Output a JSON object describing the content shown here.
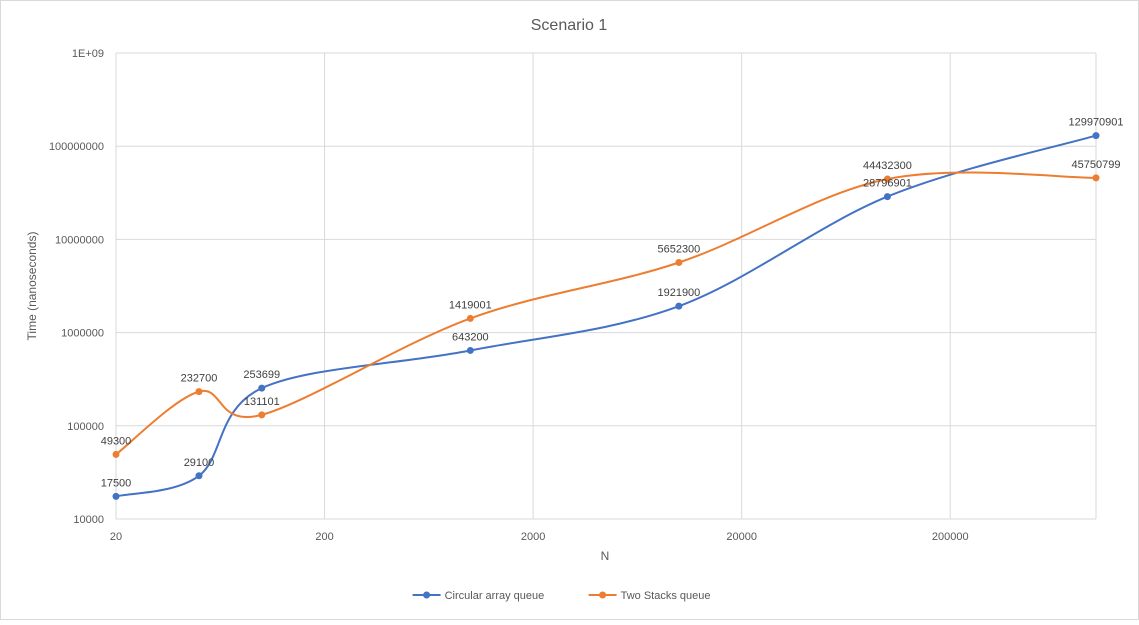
{
  "chart_data": {
    "type": "line",
    "title": "Scenario 1",
    "xlabel": "N",
    "ylabel": "Time (nanoseconds)",
    "x_scale": "log",
    "y_scale": "log",
    "xlim": [
      20,
      1000000
    ],
    "ylim": [
      10000,
      1000000000
    ],
    "x_ticks": [
      "20",
      "200",
      "2000",
      "20000",
      "200000"
    ],
    "y_ticks": [
      "10000",
      "100000",
      "1000000",
      "10000000",
      "100000000",
      "1E+09"
    ],
    "grid": true,
    "legend_position": "bottom",
    "series": [
      {
        "name": "Circular array queue",
        "color": "#4472C4",
        "x": [
          20,
          50,
          100,
          1000,
          10000,
          100000,
          1000000
        ],
        "values": [
          17500,
          29100,
          253699,
          643200,
          1921900,
          28796901,
          129970901
        ],
        "labels": [
          "17500",
          "29100",
          "253699",
          "643200",
          "1921900",
          "28796901",
          "129970901"
        ]
      },
      {
        "name": "Two Stacks queue",
        "color": "#ED7D31",
        "x": [
          20,
          50,
          100,
          1000,
          10000,
          100000,
          1000000
        ],
        "values": [
          49300,
          232700,
          131101,
          1419001,
          5652300,
          44432300,
          45750799
        ],
        "labels": [
          "49300",
          "232700",
          "131101",
          "1419001",
          "5652300",
          "44432300",
          "45750799"
        ]
      }
    ]
  }
}
